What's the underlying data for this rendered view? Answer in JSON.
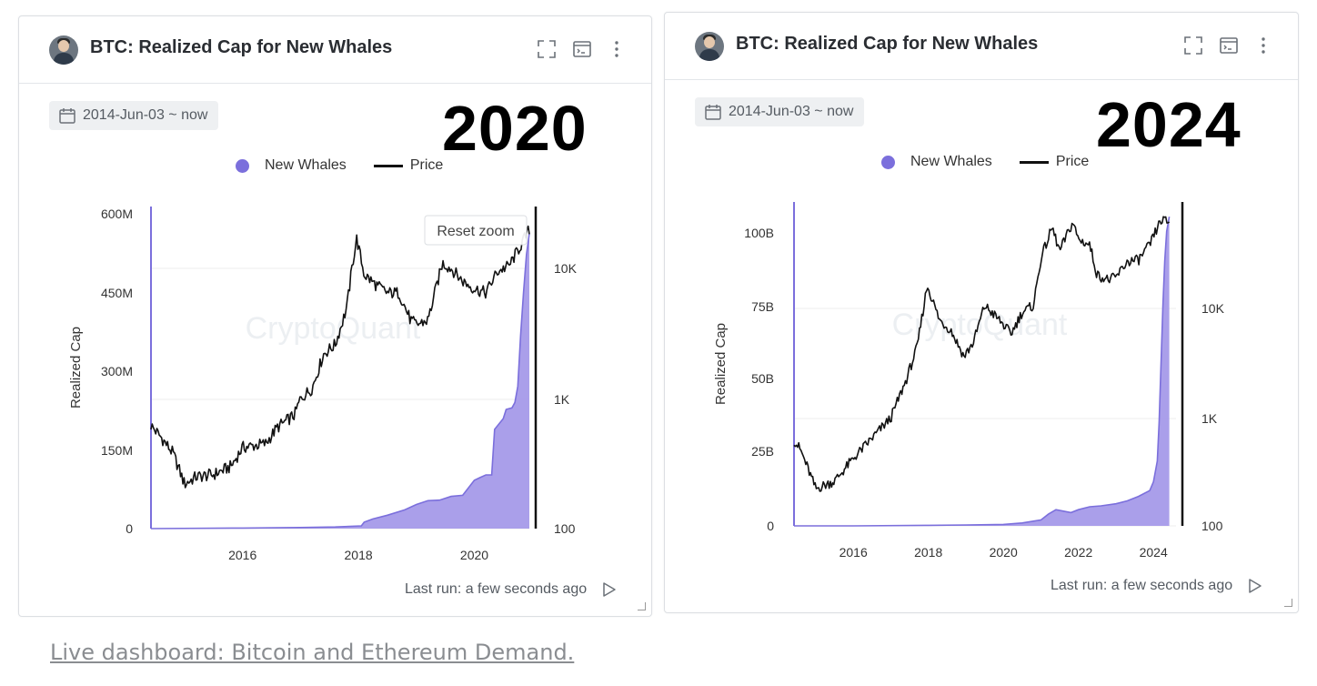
{
  "footer": {
    "link_text": "Live dashboard: Bitcoin and Ethereum Demand."
  },
  "colors": {
    "whales": "#7b6fdc",
    "whales_fill": "#a59ae9",
    "price": "#111111",
    "grid": "#ececec"
  },
  "icons": {
    "expand": "expand-icon",
    "console": "console-icon",
    "more": "more-vertical-icon",
    "calendar": "calendar-icon",
    "play": "play-icon"
  },
  "cards": [
    {
      "title": "BTC: Realized Cap for New Whales",
      "date_range": "2014-Jun-03 ~ now",
      "year_label": "2020",
      "legend": {
        "series1": "New Whales",
        "series2": "Price"
      },
      "watermark": "CryptoQuant",
      "reset_zoom": "Reset zoom",
      "last_run": "Last run: a few seconds ago",
      "ylabel": "Realized Cap",
      "left_ticks": [
        "600M",
        "450M",
        "300M",
        "150M",
        "0"
      ],
      "right_ticks": [
        "10K",
        "1K",
        "100"
      ],
      "x_ticks": [
        "2016",
        "2018",
        "2020"
      ]
    },
    {
      "title": "BTC: Realized Cap for New Whales",
      "date_range": "2014-Jun-03 ~ now",
      "year_label": "2024",
      "legend": {
        "series1": "New Whales",
        "series2": "Price"
      },
      "watermark": "CryptoQuant",
      "last_run": "Last run: a few seconds ago",
      "ylabel": "Realized Cap",
      "left_ticks": [
        "100B",
        "75B",
        "50B",
        "25B",
        "0"
      ],
      "right_ticks": [
        "10K",
        "1K",
        "100"
      ],
      "x_ticks": [
        "2016",
        "2018",
        "2020",
        "2022",
        "2024"
      ]
    }
  ],
  "chart_data": [
    {
      "type": "area",
      "title": "BTC: Realized Cap for New Whales",
      "xlabel": "",
      "ylabel": "Realized Cap",
      "y2_scale": "log",
      "xlim": [
        2014.42,
        2020.95
      ],
      "ylim": [
        0,
        600000000
      ],
      "y2lim": [
        100,
        30000
      ],
      "legend_position": "top-center",
      "grid": true,
      "series": [
        {
          "name": "New Whales",
          "axis": "left",
          "x": [
            2014.42,
            2016.0,
            2017.0,
            2017.6,
            2018.05,
            2018.1,
            2018.25,
            2018.5,
            2018.8,
            2019.0,
            2019.2,
            2019.4,
            2019.6,
            2019.8,
            2020.0,
            2020.1,
            2020.2,
            2020.3,
            2020.35,
            2020.5,
            2020.55,
            2020.65,
            2020.7,
            2020.75,
            2020.8,
            2020.85,
            2020.9,
            2020.95
          ],
          "y": [
            0,
            1000000,
            2000000,
            3000000,
            5000000,
            12000000,
            18000000,
            25000000,
            35000000,
            45000000,
            52000000,
            53000000,
            60000000,
            62000000,
            90000000,
            95000000,
            100000000,
            100000000,
            185000000,
            205000000,
            222000000,
            225000000,
            235000000,
            265000000,
            360000000,
            440000000,
            510000000,
            550000000
          ]
        },
        {
          "name": "Price",
          "axis": "right",
          "x": [
            2014.42,
            2014.6,
            2014.8,
            2015.0,
            2015.2,
            2015.5,
            2015.8,
            2016.0,
            2016.4,
            2016.6,
            2016.9,
            2017.0,
            2017.2,
            2017.4,
            2017.6,
            2017.8,
            2017.9,
            2017.97,
            2018.1,
            2018.3,
            2018.5,
            2018.7,
            2018.9,
            2019.0,
            2019.2,
            2019.45,
            2019.6,
            2019.8,
            2020.0,
            2020.2,
            2020.4,
            2020.6,
            2020.8,
            2020.95
          ],
          "y": [
            620,
            500,
            380,
            220,
            250,
            260,
            300,
            420,
            450,
            600,
            750,
            1000,
            1200,
            2200,
            2600,
            5000,
            11000,
            17000,
            9000,
            7500,
            6500,
            6500,
            4000,
            3700,
            4000,
            11000,
            10000,
            8000,
            7000,
            6500,
            9500,
            10500,
            15000,
            20000
          ]
        }
      ]
    },
    {
      "type": "area",
      "title": "BTC: Realized Cap for New Whales",
      "xlabel": "",
      "ylabel": "Realized Cap",
      "y2_scale": "log",
      "xlim": [
        2014.42,
        2024.6
      ],
      "ylim": [
        0,
        110000000000
      ],
      "y2lim": [
        100,
        100000
      ],
      "legend_position": "top-center",
      "grid": true,
      "series": [
        {
          "name": "New Whales",
          "axis": "left",
          "x": [
            2014.42,
            2016.0,
            2018.0,
            2019.0,
            2020.0,
            2020.5,
            2021.0,
            2021.2,
            2021.4,
            2021.6,
            2021.8,
            2022.0,
            2022.3,
            2022.6,
            2023.0,
            2023.3,
            2023.6,
            2023.9,
            2024.0,
            2024.1,
            2024.15,
            2024.2,
            2024.25,
            2024.3,
            2024.35,
            2024.42
          ],
          "y": [
            0,
            0,
            200000000,
            300000000,
            500000000,
            1000000000,
            2000000000,
            4000000000,
            5500000000,
            5000000000,
            4500000000,
            5500000000,
            6500000000,
            6800000000,
            7500000000,
            8500000000,
            10000000000,
            12000000000,
            15000000000,
            22000000000,
            35000000000,
            55000000000,
            75000000000,
            90000000000,
            100000000000,
            105000000000
          ]
        },
        {
          "name": "Price",
          "axis": "right",
          "x": [
            2014.42,
            2014.6,
            2015.0,
            2015.5,
            2016.0,
            2016.5,
            2017.0,
            2017.4,
            2017.7,
            2017.97,
            2018.3,
            2018.6,
            2018.95,
            2019.2,
            2019.5,
            2019.9,
            2020.2,
            2020.5,
            2020.8,
            2021.0,
            2021.3,
            2021.5,
            2021.85,
            2022.0,
            2022.3,
            2022.5,
            2022.8,
            2023.0,
            2023.3,
            2023.6,
            2023.9,
            2024.2,
            2024.42
          ],
          "y": [
            620,
            500,
            220,
            260,
            420,
            650,
            1000,
            2200,
            4500,
            17000,
            8000,
            6500,
            3700,
            5000,
            11000,
            8000,
            6000,
            9500,
            11000,
            30000,
            58000,
            35000,
            65000,
            45000,
            40000,
            21000,
            19000,
            20000,
            28000,
            29000,
            40000,
            68000,
            65000
          ]
        }
      ]
    }
  ]
}
